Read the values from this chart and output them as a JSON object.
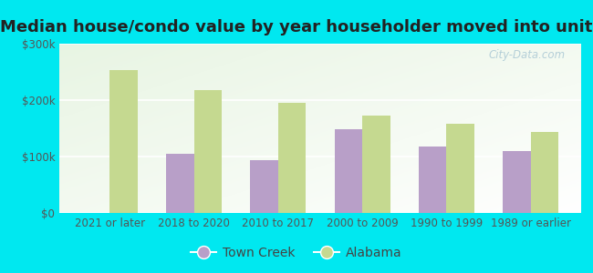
{
  "title": "Median house/condo value by year householder moved into unit",
  "categories": [
    "2021 or later",
    "2018 to 2020",
    "2010 to 2017",
    "2000 to 2009",
    "1990 to 1999",
    "1989 or earlier"
  ],
  "town_creek": [
    null,
    105000,
    93000,
    148000,
    118000,
    110000
  ],
  "alabama": [
    253000,
    218000,
    195000,
    173000,
    158000,
    143000
  ],
  "town_creek_color": "#b89fc8",
  "alabama_color": "#c5d990",
  "background_outer": "#00e8f0",
  "background_inner": "#e8f5e2",
  "ylim": [
    0,
    300000
  ],
  "yticks": [
    0,
    100000,
    200000,
    300000
  ],
  "ytick_labels": [
    "$0",
    "$100k",
    "$200k",
    "$300k"
  ],
  "bar_width": 0.33,
  "watermark": "City-Data.com",
  "legend_town_creek": "Town Creek",
  "legend_alabama": "Alabama",
  "title_fontsize": 13,
  "tick_fontsize": 8.5,
  "legend_fontsize": 10
}
